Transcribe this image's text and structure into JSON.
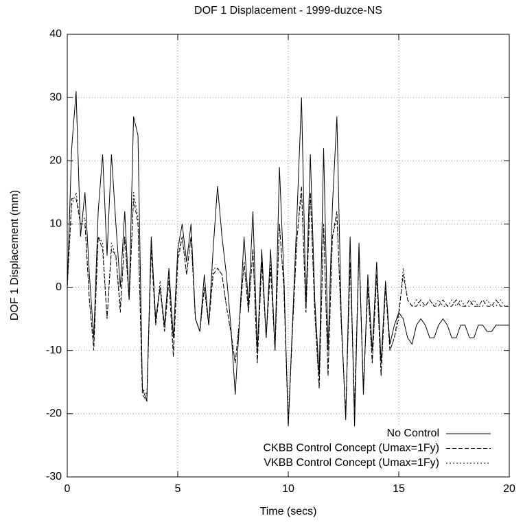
{
  "chart_data": {
    "type": "line",
    "title": "DOF 1 Displacement - 1999-duzce-NS",
    "xlabel": "Time (secs)",
    "ylabel": "DOF 1 Displacement (mm)",
    "x": [
      0,
      0.2,
      0.4,
      0.6,
      0.8,
      1,
      1.2,
      1.4,
      1.6,
      1.8,
      2,
      2.2,
      2.4,
      2.6,
      2.8,
      3,
      3.2,
      3.4,
      3.6,
      3.8,
      4,
      4.2,
      4.4,
      4.6,
      4.8,
      5,
      5.2,
      5.4,
      5.6,
      5.8,
      6,
      6.2,
      6.4,
      6.6,
      6.8,
      7,
      7.2,
      7.4,
      7.6,
      7.8,
      8,
      8.2,
      8.4,
      8.6,
      8.8,
      9,
      9.2,
      9.4,
      9.6,
      9.8,
      10,
      10.2,
      10.4,
      10.6,
      10.8,
      11,
      11.2,
      11.4,
      11.6,
      11.8,
      12,
      12.2,
      12.4,
      12.6,
      12.8,
      13,
      13.2,
      13.4,
      13.6,
      13.8,
      14,
      14.2,
      14.4,
      14.6,
      14.8,
      15,
      15.2,
      15.4,
      15.6,
      15.8,
      16,
      16.2,
      16.4,
      16.6,
      16.8,
      17,
      17.2,
      17.4,
      17.6,
      17.8,
      18,
      18.2,
      18.4,
      18.6,
      18.8,
      19,
      19.2,
      19.4,
      19.6,
      19.8,
      20
    ],
    "series": [
      {
        "name": "No Control",
        "color": "#000000",
        "dash": "none",
        "values": [
          0,
          22,
          31,
          8,
          15,
          2,
          -8,
          12,
          21,
          5,
          21,
          10,
          0,
          12,
          -2,
          27,
          24,
          -16,
          -18,
          8,
          -5,
          0,
          -6,
          3,
          -8,
          6,
          10,
          4,
          10,
          -5,
          -7,
          2,
          -6,
          6,
          16,
          8,
          2,
          -6,
          -17,
          -5,
          8,
          -3,
          12,
          -10,
          6,
          -8,
          6,
          -10,
          19,
          2,
          -22,
          -5,
          12,
          30,
          -3,
          21,
          -2,
          -14,
          22,
          -10,
          13,
          27,
          -5,
          -21,
          8,
          -22,
          7,
          -17,
          2,
          -10,
          4,
          -12,
          1,
          -9,
          -6,
          -4,
          -5,
          -8,
          -9,
          -6,
          -5,
          -6,
          -8,
          -8,
          -6,
          -5,
          -6,
          -8,
          -8,
          -6,
          -6,
          -8,
          -8,
          -6,
          -6,
          -7,
          -7,
          -6,
          -6,
          -6,
          -6
        ]
      },
      {
        "name": "CKBB Control Concept (Umax=1Fy)",
        "color": "#000000",
        "dash": "6,3",
        "values": [
          0,
          14,
          14,
          10,
          10,
          -2,
          -10,
          8,
          6,
          -5,
          6,
          5,
          -4,
          8,
          -2,
          14,
          10,
          -17,
          -18,
          6,
          -6,
          0,
          -7,
          1,
          -11,
          4,
          8,
          2,
          8,
          -5,
          -7,
          0,
          -6,
          2,
          3,
          2,
          -3,
          -7,
          -12,
          -5,
          4,
          -4,
          6,
          -12,
          4,
          -8,
          3,
          -10,
          10,
          0,
          -22,
          -6,
          8,
          16,
          -4,
          15,
          -4,
          -16,
          10,
          -14,
          8,
          12,
          -6,
          -20,
          4,
          -19,
          6,
          -16,
          0,
          -12,
          2,
          -14,
          0,
          -10,
          -8,
          -4,
          2,
          -2,
          -3,
          -3,
          -2,
          -3,
          -2,
          -3,
          -3,
          -2,
          -3,
          -3,
          -2,
          -3,
          -3,
          -2,
          -3,
          -3,
          -2,
          -3,
          -3,
          -2,
          -3,
          -3,
          -3
        ]
      },
      {
        "name": "VKBB Control Concept (Umax=1Fy)",
        "color": "#000000",
        "dash": "2,3",
        "values": [
          0,
          13,
          15,
          10,
          11,
          -2,
          -9,
          8,
          7,
          -5,
          7,
          5,
          -3,
          8,
          -2,
          15,
          11,
          -16,
          -17,
          7,
          -6,
          1,
          -7,
          2,
          -10,
          5,
          8,
          2,
          8,
          -5,
          -7,
          0,
          -6,
          3,
          3,
          2,
          -3,
          -7,
          -12,
          -5,
          4,
          -4,
          6,
          -12,
          4,
          -8,
          4,
          -10,
          10,
          0,
          -21,
          -6,
          8,
          15,
          -4,
          15,
          -4,
          -16,
          10,
          -14,
          8,
          11,
          -6,
          -20,
          4,
          -19,
          6,
          -16,
          0,
          -12,
          2,
          -14,
          0,
          -10,
          -8,
          -5,
          3,
          -2,
          -3,
          -2,
          -3,
          -3,
          -2,
          -3,
          -2,
          -3,
          -3,
          -2,
          -3,
          -2,
          -3,
          -3,
          -2,
          -3,
          -3,
          -2,
          -3,
          -3,
          -2,
          -3,
          -3
        ]
      }
    ],
    "xlim": [
      0,
      20
    ],
    "xticks": [
      0,
      5,
      10,
      15,
      20
    ],
    "ylim": [
      -30,
      40
    ],
    "yticks": [
      -30,
      -20,
      -10,
      0,
      10,
      20,
      30,
      40
    ],
    "grid": true,
    "legend": "lower right"
  }
}
